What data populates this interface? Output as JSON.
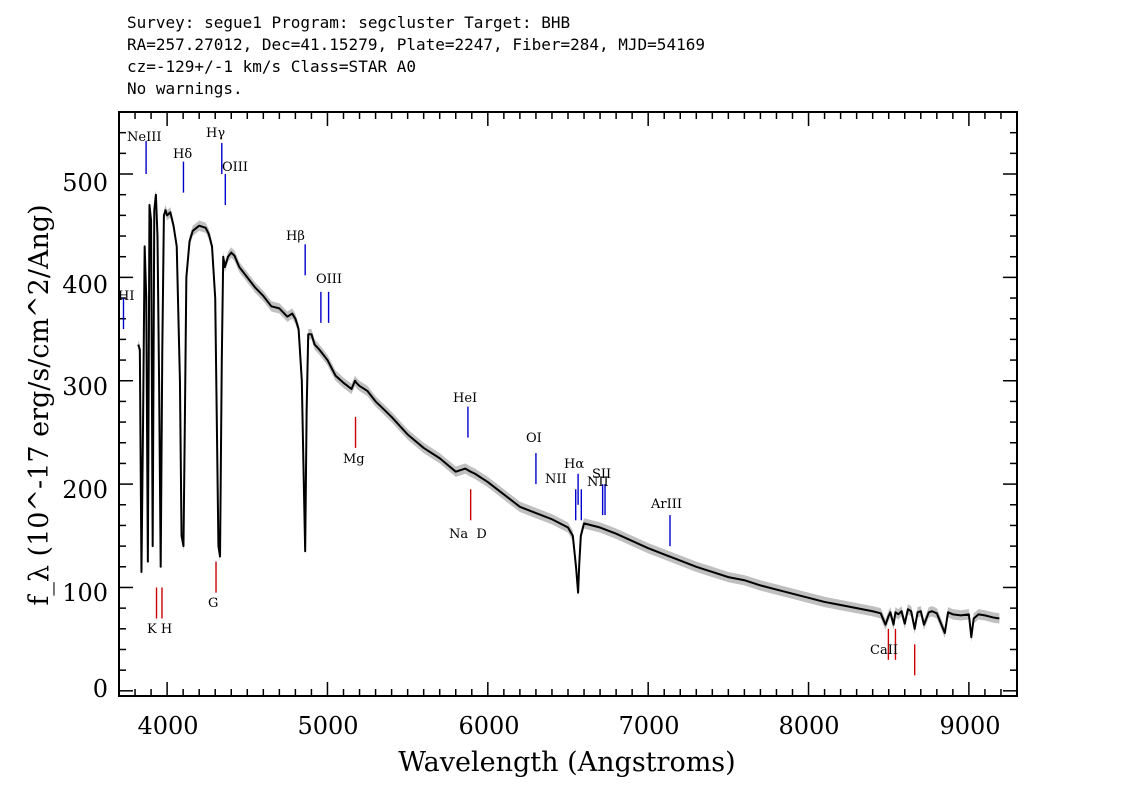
{
  "header": {
    "line1": "Survey: segue1 Program: segcluster Target: BHB",
    "line2": "RA=257.27012, Dec=41.15279, Plate=2247, Fiber=284, MJD=54169",
    "line3": "cz=-129+/-1 km/s Class=STAR A0",
    "line4": "No warnings."
  },
  "chart_data": {
    "type": "line",
    "xlabel": "Wavelength (Angstroms)",
    "ylabel": "f_λ (10^-17 erg/s/cm^2/Ang)",
    "xlim": [
      3700,
      9300
    ],
    "ylim": [
      -5,
      560
    ],
    "x_ticks": [
      4000,
      5000,
      6000,
      7000,
      8000,
      9000
    ],
    "y_ticks": [
      0,
      100,
      200,
      300,
      400,
      500
    ],
    "x_tick_labels": [
      "4000",
      "5000",
      "6000",
      "7000",
      "8000",
      "9000"
    ],
    "y_tick_labels": [
      "0",
      "100",
      "200",
      "300",
      "400",
      "500"
    ],
    "series": [
      {
        "color": "#000000",
        "x": [
          3820,
          3830,
          3840,
          3850,
          3860,
          3870,
          3880,
          3890,
          3900,
          3910,
          3920,
          3930,
          3940,
          3950,
          3960,
          3970,
          3980,
          3990,
          4000,
          4020,
          4040,
          4060,
          4080,
          4090,
          4102,
          4110,
          4120,
          4140,
          4160,
          4200,
          4240,
          4260,
          4280,
          4300,
          4320,
          4330,
          4341,
          4350,
          4360,
          4380,
          4400,
          4420,
          4450,
          4500,
          4550,
          4600,
          4650,
          4700,
          4750,
          4780,
          4800,
          4820,
          4840,
          4850,
          4861,
          4870,
          4880,
          4900,
          4920,
          4950,
          5000,
          5050,
          5100,
          5150,
          5172,
          5180,
          5200,
          5250,
          5300,
          5400,
          5500,
          5600,
          5700,
          5800,
          5860,
          5893,
          5920,
          6000,
          6100,
          6200,
          6300,
          6400,
          6450,
          6500,
          6530,
          6550,
          6563,
          6570,
          6580,
          6600,
          6700,
          6800,
          6900,
          7000,
          7100,
          7200,
          7300,
          7400,
          7500,
          7600,
          7700,
          7800,
          7900,
          8000,
          8100,
          8200,
          8300,
          8400,
          8450,
          8480,
          8498,
          8510,
          8530,
          8542,
          8560,
          8580,
          8600,
          8620,
          8640,
          8662,
          8680,
          8700,
          8720,
          8750,
          8770,
          8800,
          8850,
          8870,
          8900,
          8950,
          9000,
          9015,
          9030,
          9060,
          9100,
          9150,
          9190
        ],
        "values": [
          335,
          330,
          115,
          260,
          430,
          380,
          125,
          470,
          455,
          140,
          465,
          480,
          440,
          300,
          120,
          330,
          460,
          465,
          460,
          463,
          450,
          430,
          300,
          150,
          140,
          250,
          400,
          435,
          445,
          450,
          448,
          442,
          430,
          380,
          140,
          130,
          320,
          420,
          410,
          420,
          424,
          421,
          410,
          400,
          390,
          382,
          372,
          370,
          362,
          365,
          360,
          350,
          300,
          220,
          135,
          270,
          345,
          345,
          335,
          330,
          320,
          305,
          298,
          292,
          300,
          298,
          295,
          290,
          280,
          265,
          248,
          235,
          225,
          212,
          215,
          212,
          210,
          202,
          190,
          178,
          172,
          166,
          162,
          158,
          150,
          120,
          95,
          122,
          150,
          162,
          158,
          152,
          145,
          138,
          132,
          126,
          120,
          115,
          110,
          107,
          102,
          98,
          94,
          90,
          86,
          83,
          80,
          77,
          75,
          64,
          72,
          76,
          64,
          76,
          74,
          77,
          65,
          79,
          77,
          60,
          76,
          77,
          64,
          76,
          77,
          75,
          56,
          76,
          74,
          73,
          74,
          52,
          70,
          74,
          73,
          71,
          70
        ]
      }
    ],
    "lines_blue": [
      {
        "label": "HI",
        "wavelength": 3728,
        "y_from": 350,
        "y_to": 380
      },
      {
        "label": "NeIII",
        "wavelength": 3869,
        "y_from": 500,
        "y_to": 532
      },
      {
        "label": "Hδ",
        "wavelength": 4102,
        "y_from": 482,
        "y_to": 512
      },
      {
        "label": "Hγ",
        "wavelength": 4341,
        "y_from": 500,
        "y_to": 530
      },
      {
        "label": "OIII",
        "wavelength": 4363,
        "y_from": 470,
        "y_to": 500
      },
      {
        "label": "Hβ",
        "wavelength": 4861,
        "y_from": 402,
        "y_to": 432
      },
      {
        "label": "OIII",
        "wavelength": 4959,
        "y_from": 356,
        "y_to": 386
      },
      {
        "label": "OIII",
        "wavelength": 5007,
        "y_from": 356,
        "y_to": 386
      },
      {
        "label": "HeI",
        "wavelength": 5876,
        "y_from": 245,
        "y_to": 275
      },
      {
        "label": "OI",
        "wavelength": 6300,
        "y_from": 200,
        "y_to": 230
      },
      {
        "label": "NII",
        "wavelength": 6548,
        "y_from": 165,
        "y_to": 195
      },
      {
        "label": "Hα",
        "wavelength": 6563,
        "y_from": 180,
        "y_to": 210
      },
      {
        "label": "NII",
        "wavelength": 6583,
        "y_from": 165,
        "y_to": 195
      },
      {
        "label": "SII",
        "wavelength": 6716,
        "y_from": 170,
        "y_to": 200
      },
      {
        "label": "SII",
        "wavelength": 6731,
        "y_from": 170,
        "y_to": 200
      },
      {
        "label": "ArIII",
        "wavelength": 7136,
        "y_from": 140,
        "y_to": 170
      }
    ],
    "lines_red": [
      {
        "label": "K",
        "wavelength": 3934,
        "y_from": 70,
        "y_to": 100
      },
      {
        "label": "H",
        "wavelength": 3968,
        "y_from": 70,
        "y_to": 100
      },
      {
        "label": "G",
        "wavelength": 4305,
        "y_from": 95,
        "y_to": 125
      },
      {
        "label": "Mg",
        "wavelength": 5175,
        "y_from": 235,
        "y_to": 265
      },
      {
        "label": "Na D",
        "wavelength": 5893,
        "y_from": 165,
        "y_to": 195
      },
      {
        "label": "CaII",
        "wavelength": 8498,
        "y_from": 30,
        "y_to": 60
      },
      {
        "label": "CaII",
        "wavelength": 8542,
        "y_from": 30,
        "y_to": 60
      },
      {
        "label": "CaII",
        "wavelength": 8662,
        "y_from": 15,
        "y_to": 45
      }
    ],
    "label_texts": {
      "HI": "HI",
      "NeIII": "NeIII",
      "Hd": "Hδ",
      "Hg": "Hγ",
      "OIIIa": "OIII",
      "Hb": "Hβ",
      "OIIIb": "OIII",
      "HeI": "HeI",
      "OI": "OI",
      "NII": "NII",
      "Ha": "Hα",
      "NIIb": "NII",
      "SII": "SII",
      "ArIII": "ArIII",
      "KH": "K H",
      "G": "G",
      "Mg": "Mg",
      "NaD": "Na  D",
      "CaII": "CaII"
    }
  }
}
